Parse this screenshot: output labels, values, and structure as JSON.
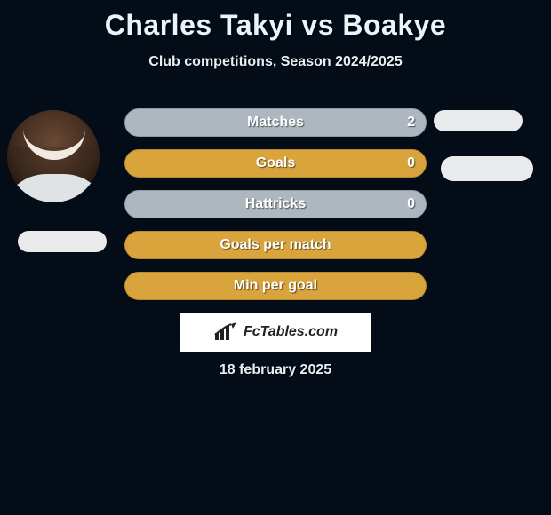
{
  "header": {
    "title": "Charles Takyi vs Boakye",
    "subtitle": "Club competitions, Season 2024/2025"
  },
  "bars": [
    {
      "label": "Matches",
      "value": "2",
      "show_value": true,
      "bg": "#aeb6c0"
    },
    {
      "label": "Goals",
      "value": "0",
      "show_value": true,
      "bg": "#d9a43b"
    },
    {
      "label": "Hattricks",
      "value": "0",
      "show_value": true,
      "bg": "#aeb6c0"
    },
    {
      "label": "Goals per match",
      "value": "",
      "show_value": false,
      "bg": "#d9a43b"
    },
    {
      "label": "Min per goal",
      "value": "",
      "show_value": false,
      "bg": "#d9a43b"
    }
  ],
  "pills": {
    "left": {
      "bg": "#e8eaec"
    },
    "r1": {
      "bg": "#e8eaec"
    },
    "r2": {
      "bg": "#e8eaec"
    }
  },
  "logo": {
    "text": "FcTables.com"
  },
  "date": "18 february 2025",
  "colors": {
    "page_bg": "#040c18",
    "title_color": "#eaf4fb",
    "text_color": "#e8eef5"
  }
}
